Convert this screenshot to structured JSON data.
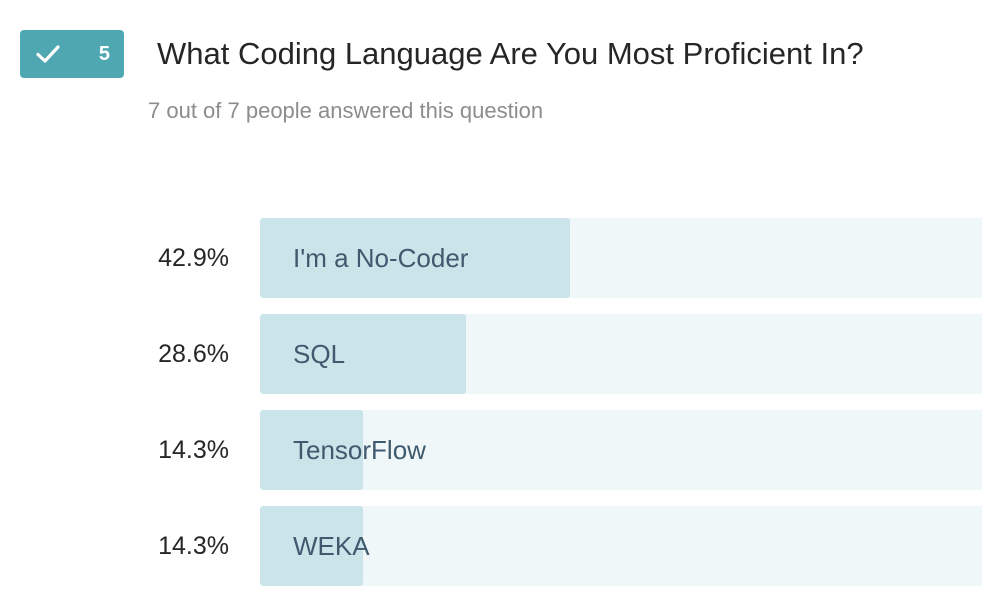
{
  "question": {
    "number": "5",
    "title": "What Coding Language Are You Most Proficient In?",
    "answered_text": "7 out of 7 people answered this question",
    "status_icon": "check-icon"
  },
  "results": [
    {
      "percent_label": "42.9%",
      "label": "I'm a No-Coder",
      "value": 42.9
    },
    {
      "percent_label": "28.6%",
      "label": "SQL",
      "value": 28.6
    },
    {
      "percent_label": "14.3%",
      "label": "TensorFlow",
      "value": 14.3
    },
    {
      "percent_label": "14.3%",
      "label": "WEKA",
      "value": 14.3
    }
  ],
  "colors": {
    "badge": "#4fa8b1",
    "bar_fill": "#cae4ea",
    "bar_track": "#eff7f9",
    "bar_label": "#3f5a6e"
  }
}
